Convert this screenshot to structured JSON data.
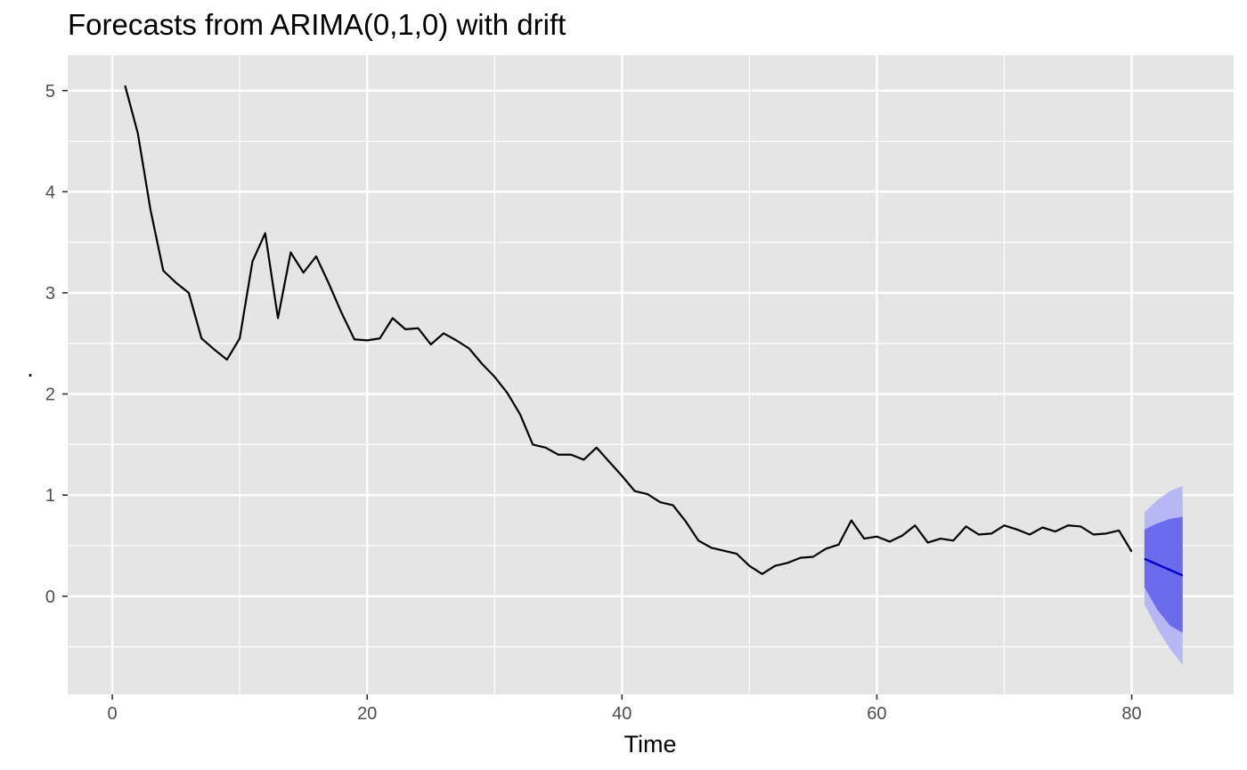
{
  "chart_data": {
    "type": "line",
    "title": "Forecasts from ARIMA(0,1,0) with drift",
    "xlabel": "Time",
    "ylabel": ".",
    "xlim": [
      -3.5,
      88
    ],
    "ylim": [
      -0.97,
      5.35
    ],
    "x_ticks": [
      0,
      20,
      40,
      60,
      80
    ],
    "x_tick_labels": [
      "0",
      "20",
      "40",
      "60",
      "80"
    ],
    "y_ticks": [
      0,
      1,
      2,
      3,
      4,
      5
    ],
    "y_tick_labels": [
      "0",
      "1",
      "2",
      "3",
      "4",
      "5"
    ],
    "grid": true,
    "panel_background": "#e5e5e5",
    "series": [
      {
        "x": [
          1,
          2,
          3,
          4,
          5,
          6,
          7,
          8,
          9,
          10,
          11,
          12,
          13,
          14,
          15,
          16,
          17,
          18,
          19,
          20,
          21,
          22,
          23,
          24,
          25,
          26,
          27,
          28,
          29,
          30,
          31,
          32,
          33,
          34,
          35,
          36,
          37,
          38,
          39,
          40,
          41,
          42,
          43,
          44,
          45,
          46,
          47,
          48,
          49,
          50,
          51,
          52,
          53,
          54,
          55,
          56,
          57,
          58,
          59,
          60,
          61,
          62,
          63,
          64,
          65,
          66,
          67,
          68,
          69,
          70,
          71,
          72,
          73,
          74,
          75,
          76,
          77,
          78,
          79,
          80
        ],
        "values": [
          5.05,
          4.58,
          3.82,
          3.22,
          3.1,
          3.0,
          2.55,
          2.44,
          2.34,
          2.55,
          3.31,
          3.59,
          2.75,
          3.4,
          3.2,
          3.36,
          3.09,
          2.8,
          2.54,
          2.53,
          2.55,
          2.75,
          2.64,
          2.65,
          2.49,
          2.6,
          2.53,
          2.45,
          2.3,
          2.17,
          2.01,
          1.8,
          1.5,
          1.47,
          1.4,
          1.4,
          1.35,
          1.47,
          1.33,
          1.19,
          1.04,
          1.01,
          0.93,
          0.9,
          0.74,
          0.55,
          0.48,
          0.45,
          0.42,
          0.3,
          0.22,
          0.3,
          0.33,
          0.38,
          0.39,
          0.47,
          0.51,
          0.75,
          0.57,
          0.59,
          0.54,
          0.6,
          0.7,
          0.53,
          0.57,
          0.55,
          0.69,
          0.61,
          0.62,
          0.7,
          0.66,
          0.61,
          0.68,
          0.64,
          0.7,
          0.69,
          0.61,
          0.62,
          0.65,
          0.44
        ],
        "color": "#000000"
      }
    ],
    "forecast": {
      "x": [
        81,
        82,
        83,
        84
      ],
      "mean": [
        0.37,
        0.315,
        0.26,
        0.205
      ],
      "lo80": [
        0.09,
        -0.13,
        -0.29,
        -0.36
      ],
      "hi80": [
        0.66,
        0.72,
        0.765,
        0.785
      ],
      "lo95": [
        -0.08,
        -0.32,
        -0.52,
        -0.68
      ],
      "hi95": [
        0.83,
        0.95,
        1.04,
        1.09
      ],
      "mean_color": "#0000cc",
      "band80_color": "#6b6bee",
      "band95_color": "#b7b7f5"
    }
  }
}
